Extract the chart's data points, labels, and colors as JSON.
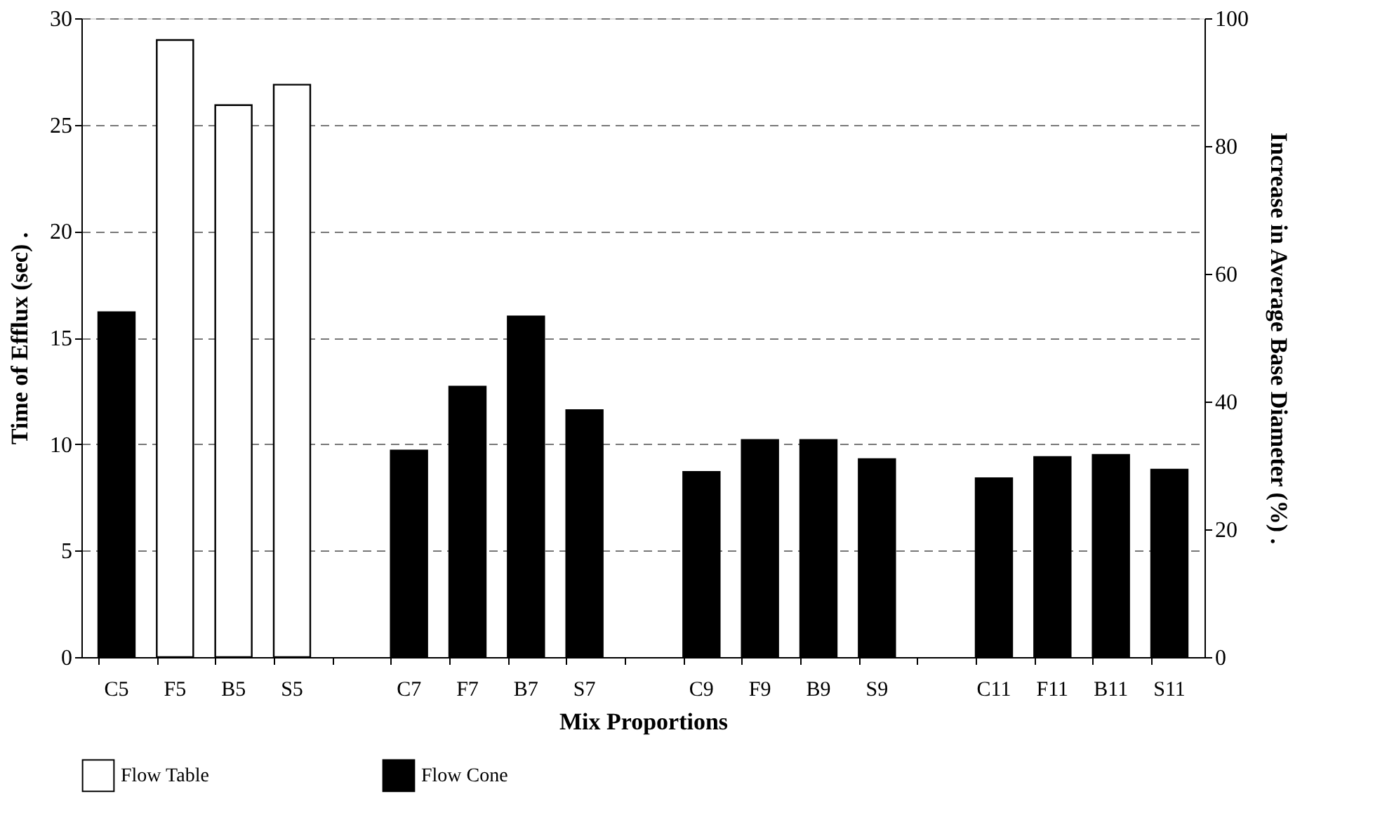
{
  "chart_data": {
    "type": "bar",
    "xlabel": "Mix Proportions",
    "ylabel": "Time of Efflux (sec) .",
    "y2label": "Increase in Average Base Diameter (%) .",
    "categories": [
      "C5",
      "F5",
      "B5",
      "S5",
      null,
      "C7",
      "F7",
      "B7",
      "S7",
      null,
      "C9",
      "F9",
      "B9",
      "S9",
      null,
      "C11",
      "F11",
      "B11",
      "S11"
    ],
    "series": [
      {
        "name": "Flow Table",
        "color": "#ffffff",
        "axis": "y2",
        "values": [
          null,
          96.6,
          86.4,
          89.6,
          null,
          null,
          null,
          null,
          null,
          null,
          null,
          null,
          null,
          null,
          null,
          null,
          null,
          null,
          null
        ]
      },
      {
        "name": "Flow Cone",
        "color": "#000000",
        "values": [
          16.2,
          null,
          null,
          null,
          null,
          9.7,
          12.7,
          16.0,
          11.6,
          null,
          8.7,
          10.2,
          10.2,
          9.3,
          null,
          8.4,
          9.4,
          9.5,
          8.8
        ]
      }
    ],
    "ylim": [
      0,
      30
    ],
    "yticks": [
      0,
      5,
      10,
      15,
      20,
      25,
      30
    ],
    "y2lim": [
      0,
      100
    ],
    "y2ticks": [
      0,
      20,
      40,
      60,
      80,
      100
    ],
    "grid": "y",
    "legend": "bottom"
  }
}
